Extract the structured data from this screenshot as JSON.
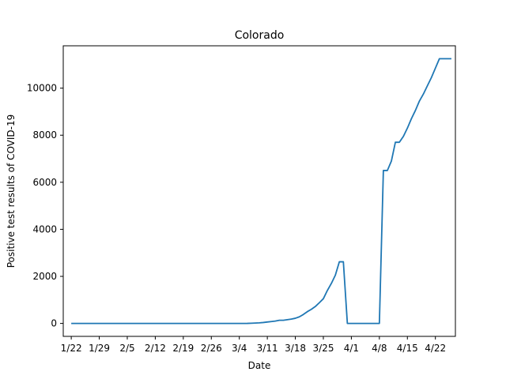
{
  "chart_data": {
    "type": "line",
    "title": "Colorado",
    "xlabel": "Date",
    "ylabel": "Positive test results of COVID-19",
    "line_color": "#1f77b4",
    "grid": false,
    "x_tick_labels": [
      "1/22",
      "1/29",
      "2/5",
      "2/12",
      "2/19",
      "2/26",
      "3/4",
      "3/11",
      "3/18",
      "3/25",
      "4/1",
      "4/8",
      "4/15",
      "4/22"
    ],
    "x_tick_dates": [
      "2020-01-22",
      "2020-01-29",
      "2020-02-05",
      "2020-02-12",
      "2020-02-19",
      "2020-02-26",
      "2020-03-04",
      "2020-03-11",
      "2020-03-18",
      "2020-03-25",
      "2020-04-01",
      "2020-04-08",
      "2020-04-15",
      "2020-04-22"
    ],
    "y_tick_labels": [
      "0",
      "2000",
      "4000",
      "6000",
      "8000",
      "10000"
    ],
    "y_ticks": [
      0,
      2000,
      4000,
      6000,
      8000,
      10000
    ],
    "xlim": [
      "2020-01-20",
      "2020-04-27"
    ],
    "ylim": [
      -550,
      11800
    ],
    "series": [
      {
        "x": [
          "2020-01-22",
          "2020-03-05",
          "2020-03-06",
          "2020-03-07",
          "2020-03-08",
          "2020-03-09",
          "2020-03-10",
          "2020-03-11",
          "2020-03-12",
          "2020-03-13",
          "2020-03-14",
          "2020-03-15",
          "2020-03-16",
          "2020-03-17",
          "2020-03-18",
          "2020-03-19",
          "2020-03-20",
          "2020-03-21",
          "2020-03-22",
          "2020-03-23",
          "2020-03-24",
          "2020-03-25",
          "2020-03-26",
          "2020-03-27",
          "2020-03-28",
          "2020-03-29",
          "2020-03-30",
          "2020-03-31",
          "2020-04-01",
          "2020-04-02",
          "2020-04-03",
          "2020-04-04",
          "2020-04-05",
          "2020-04-06",
          "2020-04-07",
          "2020-04-08",
          "2020-04-09",
          "2020-04-10",
          "2020-04-11",
          "2020-04-12",
          "2020-04-13",
          "2020-04-14",
          "2020-04-15",
          "2020-04-16",
          "2020-04-17",
          "2020-04-18",
          "2020-04-19",
          "2020-04-20",
          "2020-04-21",
          "2020-04-22",
          "2020-04-23",
          "2020-04-24",
          "2020-04-25",
          "2020-04-26"
        ],
        "values": [
          0,
          0,
          2,
          8,
          15,
          25,
          40,
          60,
          80,
          100,
          135,
          135,
          160,
          185,
          220,
          280,
          380,
          500,
          600,
          720,
          880,
          1050,
          1400,
          1700,
          2050,
          2620,
          2620,
          0,
          0,
          0,
          0,
          0,
          0,
          0,
          0,
          0,
          6500,
          6500,
          6900,
          7700,
          7700,
          7950,
          8300,
          8700,
          9050,
          9450,
          9750,
          10100,
          10450,
          10850,
          11250,
          11250,
          11250,
          11250
        ]
      }
    ]
  }
}
